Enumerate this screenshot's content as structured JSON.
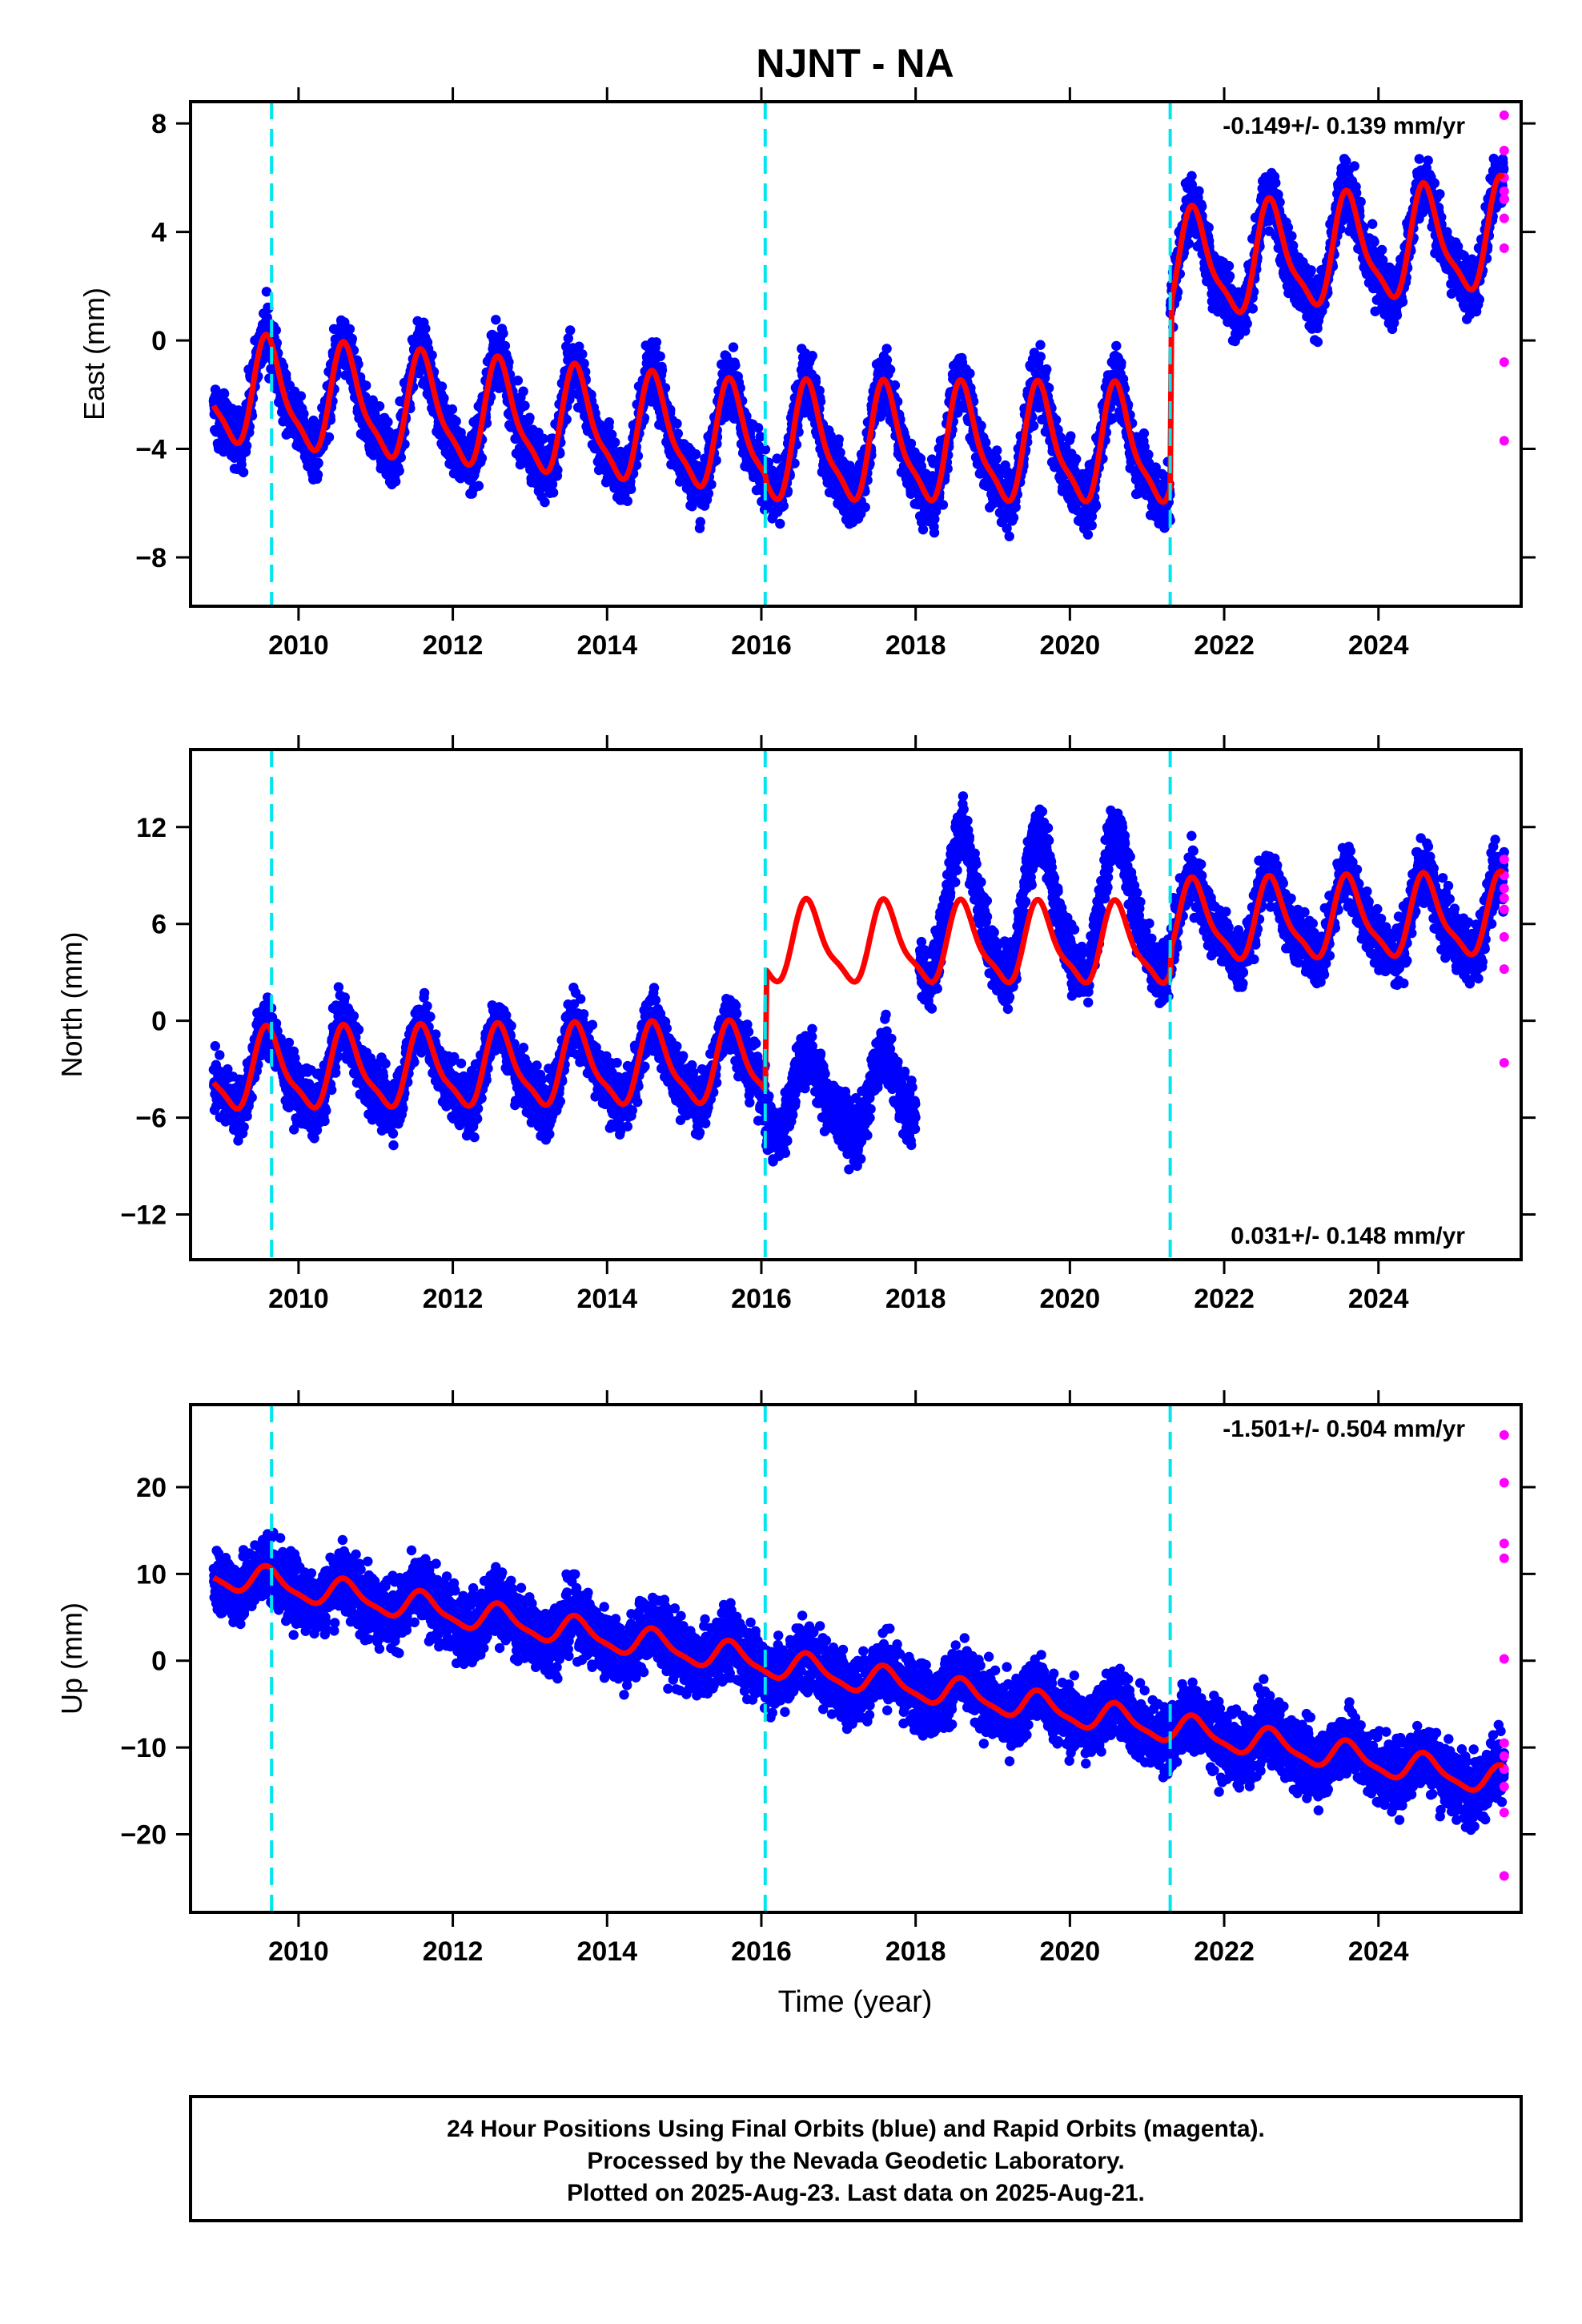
{
  "title": "NJNT - NA",
  "xlabel": "Time (year)",
  "colors": {
    "final": "#0000ff",
    "rapid": "#ff00ff",
    "model": "#ff0000",
    "offset": "#00e5ee",
    "frame": "#000000"
  },
  "footer": {
    "line1": "24 Hour Positions Using Final Orbits (blue) and Rapid Orbits (magenta).",
    "line2": "Processed by the Nevada Geodetic Laboratory.",
    "line3": "Plotted on 2025-Aug-23. Last data on 2025-Aug-21."
  },
  "chart_data": [
    {
      "type": "scatter",
      "component": "east",
      "ylabel": "East (mm)",
      "rate_label": "-0.149+/- 0.139 mm/yr",
      "rate_position": "top-right",
      "xlim": [
        2008.6,
        2025.85
      ],
      "ylim": [
        -9.8,
        8.8
      ],
      "xticks": [
        2010,
        2012,
        2014,
        2016,
        2018,
        2020,
        2022,
        2024
      ],
      "yticks": [
        8,
        4,
        0,
        -4,
        -8
      ],
      "ytick_labels": [
        "8",
        "4",
        "0",
        "−4",
        "−8"
      ],
      "offset_epochs": [
        2009.65,
        2016.05,
        2021.3
      ],
      "series": [
        {
          "name": "Final Orbits",
          "start": 2008.9,
          "end": 2025.63,
          "color": "blue"
        },
        {
          "name": "Rapid Orbits",
          "values_y": [
            8.3,
            7.0,
            6.0,
            5.5,
            5.2,
            4.5,
            3.4,
            -0.8,
            -3.7
          ],
          "x": 2025.63,
          "color": "magenta"
        }
      ],
      "model_segments": [
        {
          "x": [
            2008.9,
            2016.05
          ],
          "y_start": -1.9,
          "y_end": -3.8,
          "seasonal_amplitude": 2.4
        },
        {
          "x": [
            2016.05,
            2021.3
          ],
          "y_start": -3.9,
          "y_end": -4.0,
          "seasonal_amplitude": 2.6
        },
        {
          "x": [
            2021.3,
            2025.63
          ],
          "y_start": 2.6,
          "y_end": 3.8,
          "seasonal_amplitude": 2.4
        }
      ]
    },
    {
      "type": "scatter",
      "component": "north",
      "ylabel": "North (mm)",
      "rate_label": "0.031+/- 0.148 mm/yr",
      "rate_position": "bottom-right",
      "xlim": [
        2008.6,
        2025.85
      ],
      "ylim": [
        -14.8,
        16.8
      ],
      "xticks": [
        2010,
        2012,
        2014,
        2016,
        2018,
        2020,
        2022,
        2024
      ],
      "yticks": [
        12,
        6,
        0,
        -6,
        -12
      ],
      "ytick_labels": [
        "12",
        "6",
        "0",
        "−6",
        "−12"
      ],
      "offset_epochs": [
        2009.65,
        2016.05,
        2021.3
      ],
      "series": [
        {
          "name": "Final Orbits",
          "start": 2008.9,
          "end": 2025.63,
          "color": "blue"
        },
        {
          "name": "Rapid Orbits",
          "values_y": [
            10.0,
            9.0,
            8.2,
            7.6,
            6.9,
            5.2,
            3.2,
            -2.6
          ],
          "x": 2025.63,
          "color": "magenta"
        }
      ],
      "model_segments": [
        {
          "x": [
            2008.9,
            2016.05
          ],
          "y_start": -3.2,
          "y_end": -2.8,
          "seasonal_amplitude": 3.0
        },
        {
          "x": [
            2016.05,
            2021.3
          ],
          "y_start": 4.7,
          "y_end": 4.6,
          "seasonal_amplitude": 3.0
        },
        {
          "x": [
            2021.3,
            2025.63
          ],
          "y_start": 6.0,
          "y_end": 6.4,
          "seasonal_amplitude": 3.0
        }
      ]
    },
    {
      "type": "scatter",
      "component": "up",
      "ylabel": "Up (mm)",
      "rate_label": "-1.501+/- 0.504 mm/yr",
      "rate_position": "top-right",
      "xlim": [
        2008.6,
        2025.85
      ],
      "ylim": [
        -29.0,
        29.5
      ],
      "xticks": [
        2010,
        2012,
        2014,
        2016,
        2018,
        2020,
        2022,
        2024
      ],
      "yticks": [
        20,
        10,
        0,
        -10,
        -20
      ],
      "ytick_labels": [
        "20",
        "10",
        "0",
        "−10",
        "−20"
      ],
      "offset_epochs": [
        2009.65,
        2016.05,
        2021.3
      ],
      "series": [
        {
          "name": "Final Orbits",
          "start": 2008.9,
          "end": 2025.63,
          "color": "blue"
        },
        {
          "name": "Rapid Orbits",
          "values_y": [
            26.0,
            20.5,
            13.5,
            11.8,
            0.2,
            -9.5,
            -11.0,
            -12.5,
            -14.5,
            -17.5,
            -24.8
          ],
          "x": 2025.63,
          "color": "magenta"
        }
      ],
      "model_segments": [
        {
          "x": [
            2008.9,
            2025.63
          ],
          "y_start": 10.0,
          "y_end": -14.0,
          "seasonal_amplitude": 2.0
        }
      ]
    }
  ]
}
